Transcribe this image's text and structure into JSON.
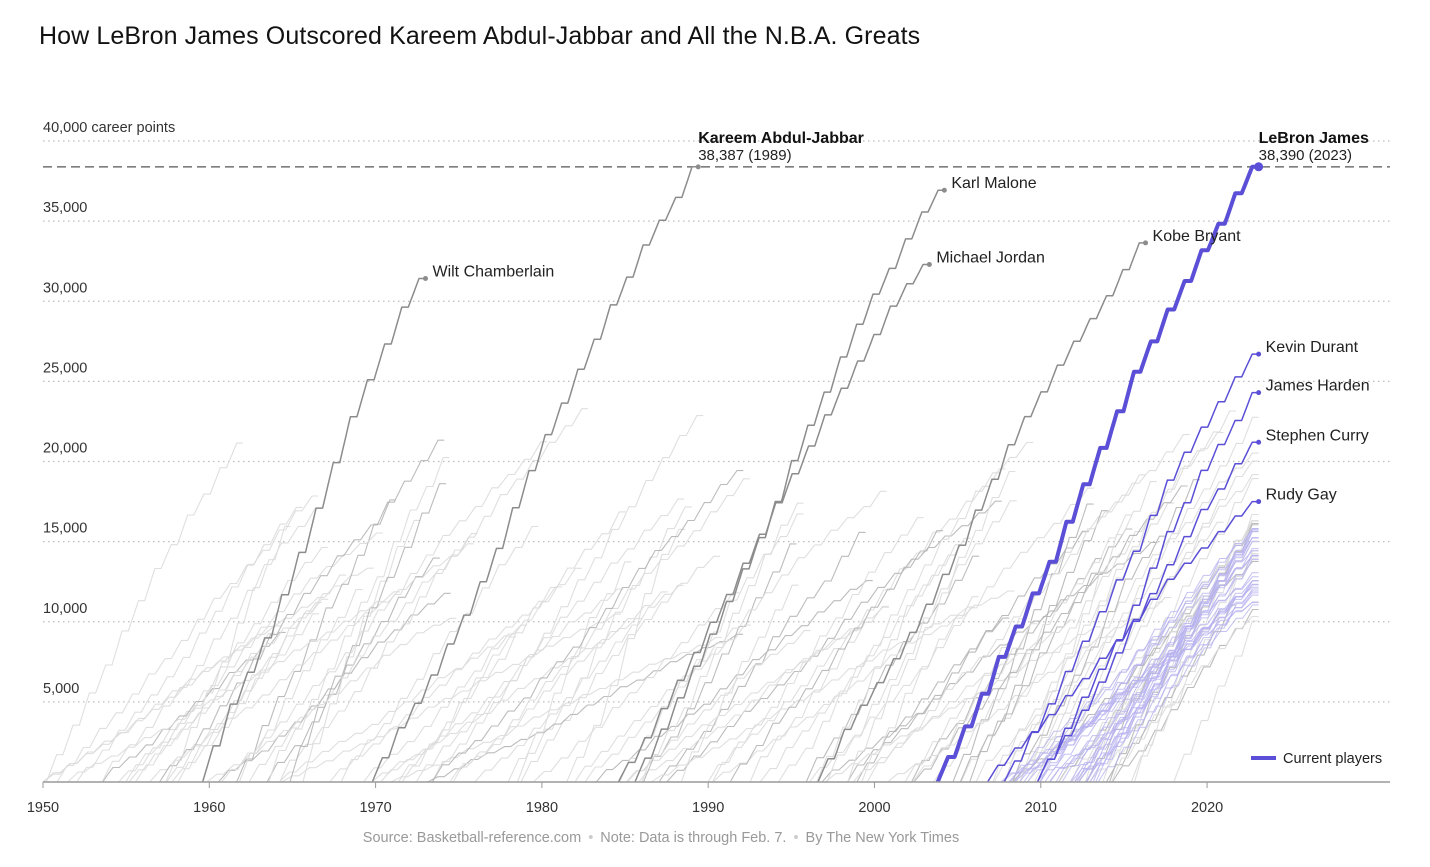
{
  "title": "How LeBron James Outscored Kareem Abdul-Jabbar and All the N.B.A. Greats",
  "footer": {
    "source": "Source: Basketball-reference.com",
    "note": "Note: Data is through Feb. 7.",
    "credit": "By The New York Times"
  },
  "chart_data": {
    "type": "line",
    "title": "How LeBron James Outscored Kareem Abdul-Jabbar and All the N.B.A. Greats",
    "xlabel": "",
    "ylabel": "",
    "xlim": [
      1950,
      2031
    ],
    "ylim": [
      0,
      40000
    ],
    "x_ticks": [
      1950,
      1960,
      1970,
      1980,
      1990,
      2000,
      2010,
      2020
    ],
    "y_ticks": [
      {
        "value": 5000,
        "label": "5,000"
      },
      {
        "value": 10000,
        "label": "10,000"
      },
      {
        "value": 15000,
        "label": "15,000"
      },
      {
        "value": 20000,
        "label": "20,000"
      },
      {
        "value": 25000,
        "label": "25,000"
      },
      {
        "value": 30000,
        "label": "30,000"
      },
      {
        "value": 35000,
        "label": "35,000"
      },
      {
        "value": 40000,
        "label": "40,000 career points"
      }
    ],
    "grid": "horizontal-dotted",
    "record_line": 38387,
    "legend": {
      "label": "Current players",
      "position": "bottom-right",
      "color": "#5a4fd6"
    },
    "colors": {
      "current": "#5a4fd6",
      "highlight": "#8c8c8c",
      "background": "#cfcfcf",
      "current_faint": "#b7b1ef"
    },
    "series": [
      {
        "name": "Wilt Chamberlain",
        "label": "Wilt Chamberlain",
        "group": "highlight",
        "start": 1959.6,
        "end": 1973,
        "total": 31419
      },
      {
        "name": "Kareem Abdul-Jabbar",
        "label": "Kareem Abdul-Jabbar",
        "sublabel": "38,387 (1989)",
        "group": "record",
        "start": 1969.8,
        "end": 1989.4,
        "total": 38387
      },
      {
        "name": "Karl Malone",
        "label": "Karl Malone",
        "group": "highlight",
        "start": 1985.6,
        "end": 2004.2,
        "total": 36928
      },
      {
        "name": "Michael Jordan",
        "label": "Michael Jordan",
        "group": "highlight",
        "start": 1984.6,
        "end": 2003.3,
        "total": 32292
      },
      {
        "name": "Kobe Bryant",
        "label": "Kobe Bryant",
        "group": "highlight",
        "start": 1996.6,
        "end": 2016.3,
        "total": 33643
      },
      {
        "name": "LeBron James",
        "label": "LeBron James",
        "sublabel": "38,390 (2023)",
        "group": "leader",
        "start": 2003.8,
        "end": 2023.1,
        "total": 38390
      },
      {
        "name": "Kevin Durant",
        "label": "Kevin Durant",
        "group": "current",
        "start": 2007.8,
        "end": 2023.1,
        "total": 26700
      },
      {
        "name": "James Harden",
        "label": "James Harden",
        "group": "current",
        "start": 2009.8,
        "end": 2023.1,
        "total": 24300
      },
      {
        "name": "Stephen Curry",
        "label": "Stephen Curry",
        "group": "current",
        "start": 2009.8,
        "end": 2023.1,
        "total": 21200
      },
      {
        "name": "Rudy Gay",
        "label": "Rudy Gay",
        "group": "current",
        "start": 2006.8,
        "end": 2023.1,
        "total": 17500
      }
    ]
  }
}
